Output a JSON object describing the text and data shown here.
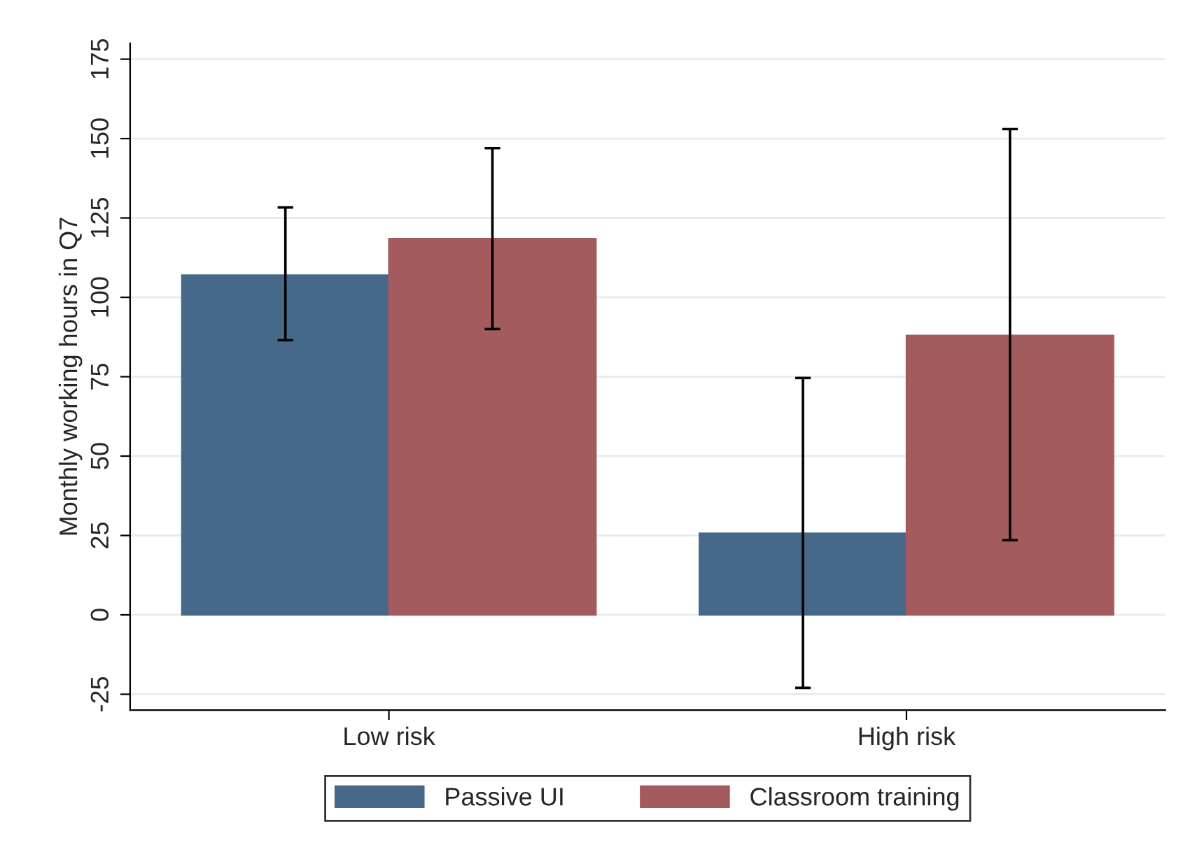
{
  "chart_data": {
    "type": "bar",
    "ylabel": "Monthly working hours in Q7",
    "categories": [
      "Low risk",
      "High risk"
    ],
    "series": [
      {
        "name": "Passive UI",
        "color": "#46698a",
        "values": [
          107,
          25.7
        ],
        "errors": [
          [
            86.5,
            128.3
          ],
          [
            -23,
            74.6
          ]
        ]
      },
      {
        "name": "Classroom training",
        "color": "#a35b5e",
        "values": [
          118.5,
          88
        ],
        "errors": [
          [
            90,
            147
          ],
          [
            23.5,
            153
          ]
        ]
      }
    ],
    "ylim": [
      -30,
      180
    ],
    "yticks": [
      -25,
      0,
      25,
      50,
      75,
      100,
      125,
      150,
      175
    ],
    "grid": "y",
    "legend": "bottom"
  }
}
